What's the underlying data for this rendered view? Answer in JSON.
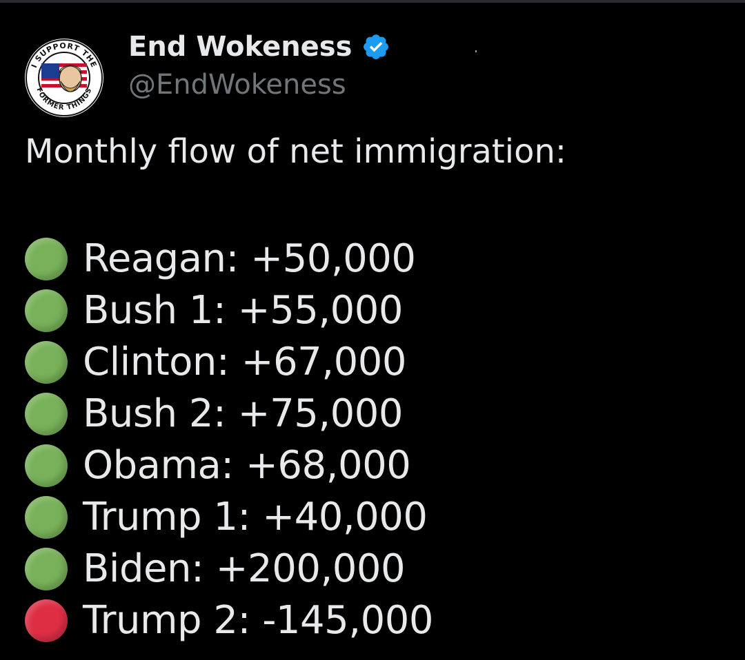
{
  "author": {
    "display_name": "End Wokeness",
    "handle": "@EndWokeness",
    "avatar_icon": "avatar-support-former-things",
    "avatar_text_top": "I SUPPORT THE",
    "avatar_text_bottom": "FORMER THINGS",
    "verified_icon": "verified-badge-icon",
    "verified_color": "#1d9bf0"
  },
  "post": {
    "intro": "Monthly flow of net immigration:",
    "items": [
      {
        "dot": "green-circle-icon",
        "dot_color": "#78b159",
        "label": "Reagan: +50,000"
      },
      {
        "dot": "green-circle-icon",
        "dot_color": "#78b159",
        "label": "Bush 1: +55,000"
      },
      {
        "dot": "green-circle-icon",
        "dot_color": "#78b159",
        "label": "Clinton: +67,000"
      },
      {
        "dot": "green-circle-icon",
        "dot_color": "#78b159",
        "label": "Bush 2: +75,000"
      },
      {
        "dot": "green-circle-icon",
        "dot_color": "#78b159",
        "label": "Obama: +68,000"
      },
      {
        "dot": "green-circle-icon",
        "dot_color": "#78b159",
        "label": "Trump 1: +40,000"
      },
      {
        "dot": "green-circle-icon",
        "dot_color": "#78b159",
        "label": "Biden: +200,000"
      },
      {
        "dot": "red-circle-icon",
        "dot_color": "#dd2e44",
        "label": "Trump 2: -145,000"
      }
    ]
  },
  "colors": {
    "background": "#000000",
    "text_primary": "#e7e9ea",
    "text_secondary": "#71767b"
  }
}
